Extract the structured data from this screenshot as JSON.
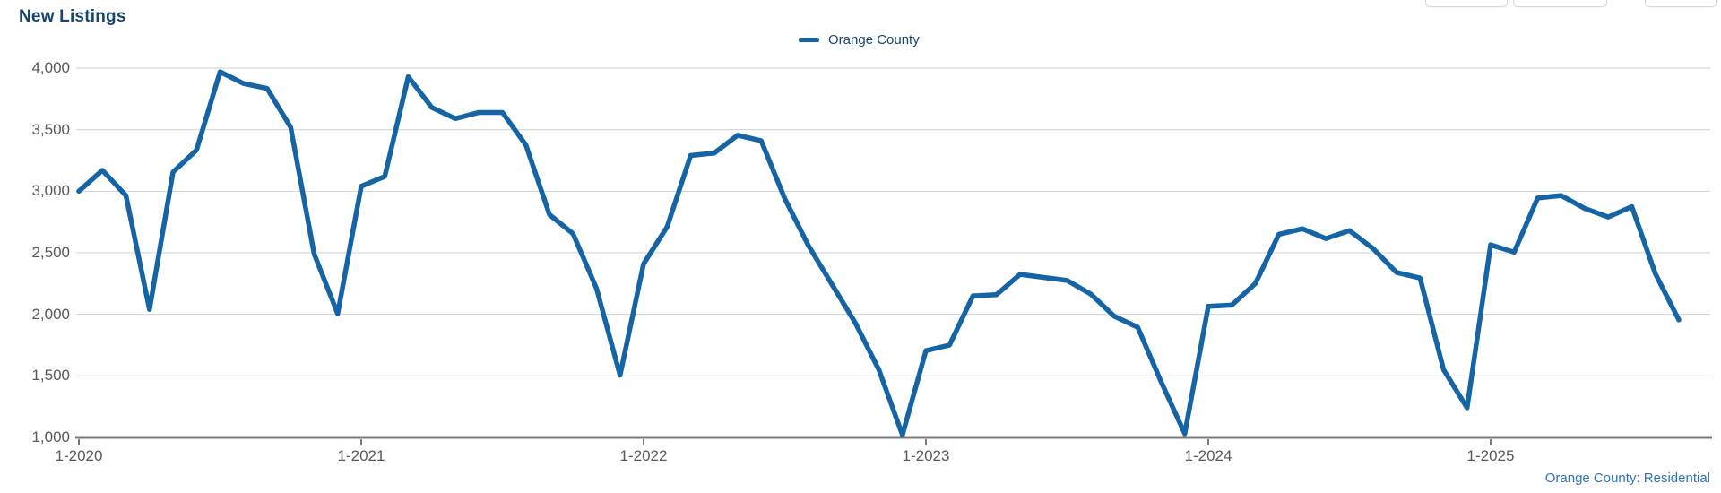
{
  "header": {
    "title": "New Listings"
  },
  "legend": {
    "series_label": "Orange County",
    "swatch_color": "#1564a5"
  },
  "footer": {
    "source_label": "Orange County: Residential"
  },
  "colors": {
    "line": "#1564a5",
    "title_text": "#17456e",
    "axis_label_text": "#58595b",
    "gridline": "#d2d2d2",
    "axis_line": "#7a7a7a",
    "source_text": "#2f74b8"
  },
  "chart_data": {
    "type": "line",
    "title": "New Listings",
    "legend_position": "top-center",
    "grid": "horizontal",
    "ylim": [
      1000,
      4000
    ],
    "y_ticks": [
      1000,
      1500,
      2000,
      2500,
      3000,
      3500,
      4000
    ],
    "y_tick_labels": [
      "1,000",
      "1,500",
      "2,000",
      "2,500",
      "3,000",
      "3,500",
      "4,000"
    ],
    "x_tick_labels": [
      "1-2020",
      "1-2021",
      "1-2022",
      "1-2023",
      "1-2024",
      "1-2025"
    ],
    "x_tick_indices": [
      0,
      12,
      24,
      36,
      48,
      60
    ],
    "x": [
      "1-2020",
      "2-2020",
      "3-2020",
      "4-2020",
      "5-2020",
      "6-2020",
      "7-2020",
      "8-2020",
      "9-2020",
      "10-2020",
      "11-2020",
      "12-2020",
      "1-2021",
      "2-2021",
      "3-2021",
      "4-2021",
      "5-2021",
      "6-2021",
      "7-2021",
      "8-2021",
      "9-2021",
      "10-2021",
      "11-2021",
      "12-2021",
      "1-2022",
      "2-2022",
      "3-2022",
      "4-2022",
      "5-2022",
      "6-2022",
      "7-2022",
      "8-2022",
      "9-2022",
      "10-2022",
      "11-2022",
      "12-2022",
      "1-2023",
      "2-2023",
      "3-2023",
      "4-2023",
      "5-2023",
      "6-2023",
      "7-2023",
      "8-2023",
      "9-2023",
      "10-2023",
      "11-2023",
      "12-2023",
      "1-2024",
      "2-2024",
      "3-2024",
      "4-2024",
      "5-2024",
      "6-2024",
      "7-2024",
      "8-2024",
      "9-2024",
      "10-2024",
      "11-2024",
      "12-2024",
      "1-2025",
      "2-2025",
      "3-2025",
      "4-2025",
      "5-2025",
      "6-2025",
      "7-2025",
      "8-2025",
      "9-2025"
    ],
    "series": [
      {
        "name": "Orange County",
        "color": "#1564a5",
        "values": [
          3000,
          3170,
          2965,
          2040,
          3155,
          3335,
          3970,
          3875,
          3835,
          3520,
          2490,
          2005,
          3040,
          3120,
          3930,
          3680,
          3590,
          3640,
          3640,
          3375,
          2810,
          2655,
          2210,
          1505,
          2410,
          2710,
          3290,
          3310,
          3455,
          3410,
          2940,
          2560,
          2245,
          1930,
          1550,
          1020,
          1705,
          1750,
          2150,
          2160,
          2325,
          2300,
          2275,
          2165,
          1985,
          1895,
          1450,
          1030,
          2065,
          2075,
          2250,
          2650,
          2695,
          2615,
          2680,
          2535,
          2340,
          2295,
          1550,
          1240,
          2565,
          2505,
          2945,
          2965,
          2860,
          2790,
          2875,
          2330,
          1955
        ]
      }
    ]
  }
}
